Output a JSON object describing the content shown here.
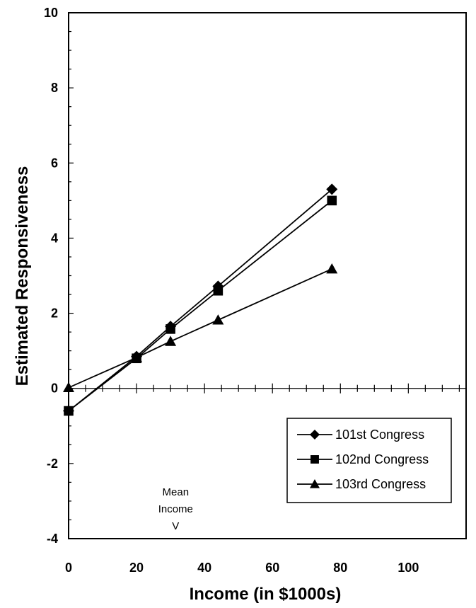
{
  "chart_data": {
    "type": "line",
    "xlabel": "Income (in $1000s)",
    "ylabel": "Estimated Responsiveness",
    "xlim": [
      0,
      117
    ],
    "ylim": [
      -4,
      10
    ],
    "x_ticks": [
      0,
      20,
      40,
      60,
      80,
      100
    ],
    "y_ticks": [
      -4,
      -2,
      0,
      2,
      4,
      6,
      8,
      10
    ],
    "x_tick_labels": [
      "0",
      "20",
      "40",
      "60",
      "80",
      "100"
    ],
    "y_tick_labels": [
      "-4",
      "-2",
      "0",
      "2",
      "4",
      "6",
      "8",
      "10"
    ],
    "grid": false,
    "legend_position": "bottom-right",
    "series": [
      {
        "name": "101st Congress",
        "marker": "diamond",
        "x": [
          0,
          20,
          30,
          44,
          77.5
        ],
        "y": [
          -0.6,
          0.85,
          1.65,
          2.72,
          5.3
        ]
      },
      {
        "name": "102nd Congress",
        "marker": "square",
        "x": [
          0,
          20,
          30,
          44,
          77.5
        ],
        "y": [
          -0.6,
          0.8,
          1.58,
          2.6,
          5.0
        ]
      },
      {
        "name": "103rd Congress",
        "marker": "triangle",
        "x": [
          0,
          20,
          30,
          44,
          77.5
        ],
        "y": [
          0.02,
          0.82,
          1.25,
          1.82,
          3.18
        ]
      }
    ],
    "annotations": [
      {
        "lines": [
          "Mean",
          "Income",
          "V"
        ],
        "x": 31.5
      }
    ]
  },
  "colors": {
    "line": "#000000",
    "marker": "#000000",
    "background": "#ffffff"
  }
}
